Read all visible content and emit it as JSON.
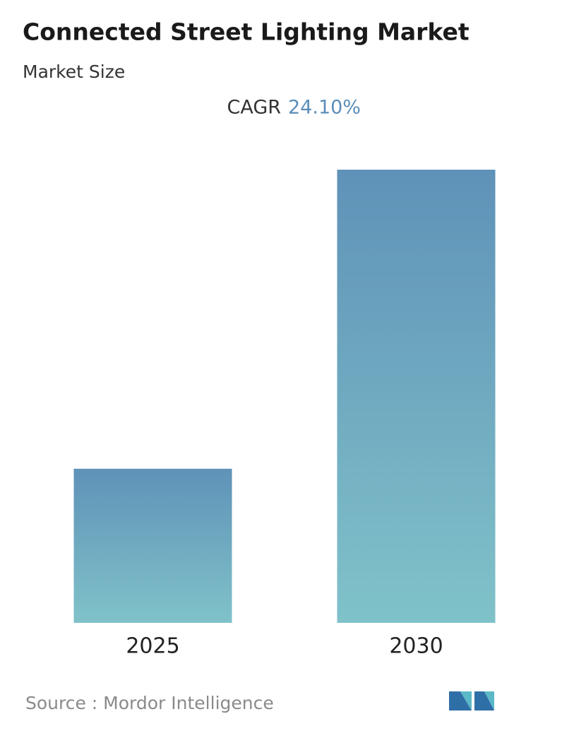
{
  "chart_data": {
    "type": "bar",
    "title": "Connected Street Lighting Market",
    "subtitle": "Market Size",
    "cagr_label": "CAGR",
    "cagr": "24.10%",
    "categories": [
      "2025",
      "2030"
    ],
    "values": [
      34,
      100
    ],
    "color_top": "#5f92b8",
    "color_bottom": "#80c2c9",
    "ylim": [
      0,
      100
    ],
    "grid": false,
    "source": "Source :  Mordor Intelligence"
  }
}
